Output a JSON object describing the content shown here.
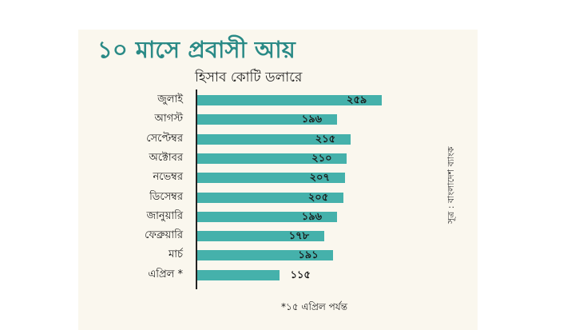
{
  "colors": {
    "bar": "#45b1ab",
    "title": "#2a8a86"
  },
  "chart_data": {
    "type": "bar",
    "orientation": "horizontal",
    "title": "১০ মাসে প্রবাসী আয়",
    "subtitle": "হিসাব কোটি ডলারে",
    "categories": [
      "জুলাই",
      "আগস্ট",
      "সেপ্টেম্বর",
      "অক্টোবর",
      "নভেম্বর",
      "ডিসেম্বর",
      "জানুয়ারি",
      "ফেব্রুয়ারি",
      "মার্চ",
      "এপ্রিল *"
    ],
    "values": [
      259,
      196,
      215,
      210,
      207,
      205,
      196,
      178,
      191,
      115
    ],
    "value_labels": [
      "২৫৯",
      "১৯৬",
      "২১৫",
      "২১০",
      "২০৭",
      "২০৫",
      "১৯৬",
      "১৭৮",
      "১৯১",
      "১১৫"
    ],
    "footnote": "*১৫ এপ্রিল পর্যন্ত",
    "source": "সূত্র : বাংলাদেশ ব্যাংক",
    "xlim": [
      0,
      280
    ],
    "grid": false,
    "legend": "none"
  }
}
